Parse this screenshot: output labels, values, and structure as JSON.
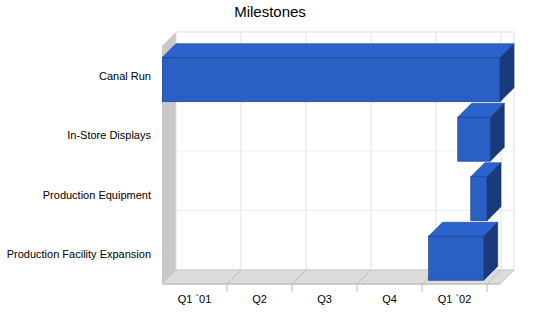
{
  "chart_data": {
    "type": "bar",
    "orientation": "horizontal",
    "title": "Milestones",
    "categories": [
      "Canal Run",
      "In-Store Displays",
      "Production Equipment",
      "Production Facility Expansion"
    ],
    "values": [
      [
        0,
        5.2
      ],
      [
        4.55,
        5.05
      ],
      [
        4.75,
        5.0
      ],
      [
        4.1,
        4.95
      ]
    ],
    "color": "#2a5fc4",
    "xlim": [
      0,
      5.2
    ],
    "xticks": [
      {
        "value": 0.5,
        "label": "Q1 `01"
      },
      {
        "value": 1.5,
        "label": "Q2"
      },
      {
        "value": 2.5,
        "label": "Q3"
      },
      {
        "value": 3.5,
        "label": "Q4"
      },
      {
        "value": 4.5,
        "label": "Q1 `02"
      }
    ],
    "grid": true
  }
}
